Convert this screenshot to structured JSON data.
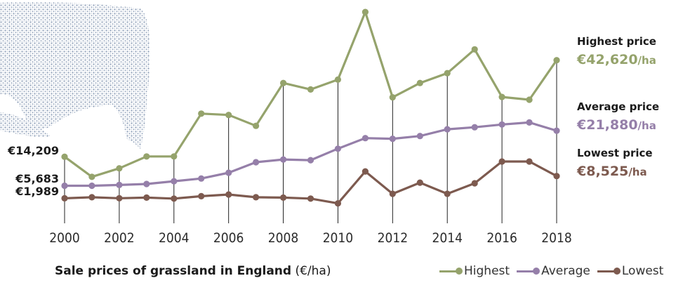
{
  "caption": {
    "title": "Sale prices of grassland in England",
    "unit": "(€/ha)"
  },
  "legend": {
    "highest": "Highest",
    "average": "Average",
    "lowest": "Lowest"
  },
  "side_labels": {
    "highest": {
      "title": "Highest price",
      "value": "€42,620",
      "unit": "/ha"
    },
    "average": {
      "title": "Average price",
      "value": "€21,880",
      "unit": "/ha"
    },
    "lowest": {
      "title": "Lowest price",
      "value": "€8,525",
      "unit": "/ha"
    }
  },
  "start_labels": {
    "highest": "€14,209",
    "average": "€5,683",
    "lowest": "€1,989"
  },
  "colors": {
    "highest": "#95a36c",
    "average": "#957fa9",
    "lowest": "#7d5a4f",
    "gridline": "#222222",
    "picture": "#8fa0b8"
  },
  "chart_data": {
    "type": "line",
    "title": "Sale prices of grassland in England",
    "unit": "€/ha",
    "x": [
      2000,
      2001,
      2002,
      2003,
      2004,
      2005,
      2006,
      2007,
      2008,
      2009,
      2010,
      2011,
      2012,
      2013,
      2014,
      2015,
      2016,
      2017,
      2018
    ],
    "x_tick_labels": [
      "2000",
      "2002",
      "2004",
      "2006",
      "2008",
      "2010",
      "2012",
      "2014",
      "2016",
      "2018"
    ],
    "ylim": [
      0,
      57000
    ],
    "grid": "vertical lines at even years",
    "legend_position": "bottom-right",
    "series": [
      {
        "name": "Highest",
        "values": [
          14209,
          8300,
          10800,
          14300,
          14300,
          26900,
          26500,
          23300,
          35900,
          34000,
          36900,
          56800,
          31700,
          35900,
          38800,
          45800,
          31800,
          31000,
          42620
        ]
      },
      {
        "name": "Average",
        "values": [
          5683,
          5683,
          5900,
          6200,
          7000,
          7800,
          9500,
          12600,
          13400,
          13200,
          16600,
          19700,
          19500,
          20300,
          22300,
          22900,
          23700,
          24300,
          21880
        ]
      },
      {
        "name": "Lowest",
        "values": [
          1989,
          2300,
          2000,
          2200,
          1900,
          2600,
          3100,
          2300,
          2200,
          1900,
          500,
          9900,
          3300,
          6600,
          3300,
          6400,
          12800,
          12800,
          8525
        ]
      }
    ]
  }
}
